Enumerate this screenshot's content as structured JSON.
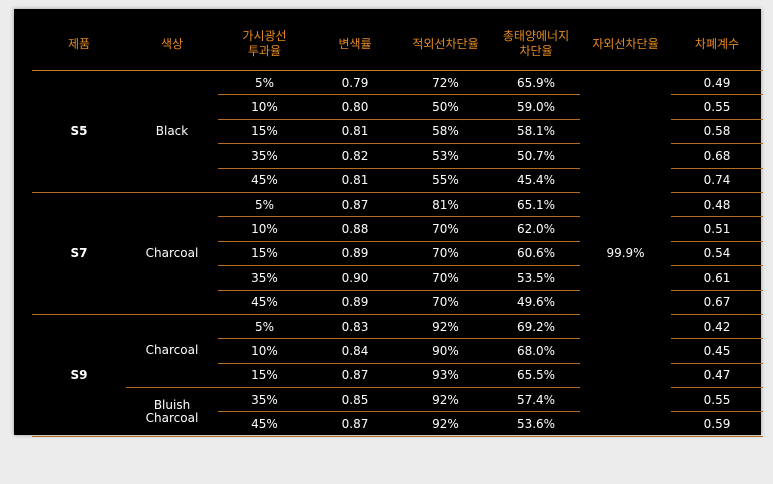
{
  "headers": {
    "product": "제품",
    "color": "색상",
    "vlt_1": "가시광선",
    "vlt_2": "투과율",
    "discolor": "변색률",
    "ir": "적외선차단율",
    "tser_1": "총태양에너지",
    "tser_2": "차단율",
    "uv": "자외선차단율",
    "shading": "차폐계수"
  },
  "uv_value": "99.9%",
  "groups": [
    {
      "product": "S5",
      "rows": [
        {
          "color": "Black",
          "vlt": "5%",
          "discolor": "0.79",
          "ir": "72%",
          "tser": "65.9%",
          "shading": "0.49"
        },
        {
          "vlt": "10%",
          "discolor": "0.80",
          "ir": "50%",
          "tser": "59.0%",
          "shading": "0.55"
        },
        {
          "vlt": "15%",
          "discolor": "0.81",
          "ir": "58%",
          "tser": "58.1%",
          "shading": "0.58"
        },
        {
          "vlt": "35%",
          "discolor": "0.82",
          "ir": "53%",
          "tser": "50.7%",
          "shading": "0.68"
        },
        {
          "vlt": "45%",
          "discolor": "0.81",
          "ir": "55%",
          "tser": "45.4%",
          "shading": "0.74"
        }
      ]
    },
    {
      "product": "S7",
      "rows": [
        {
          "color": "Charcoal",
          "vlt": "5%",
          "discolor": "0.87",
          "ir": "81%",
          "tser": "65.1%",
          "shading": "0.48"
        },
        {
          "vlt": "10%",
          "discolor": "0.88",
          "ir": "70%",
          "tser": "62.0%",
          "shading": "0.51"
        },
        {
          "vlt": "15%",
          "discolor": "0.89",
          "ir": "70%",
          "tser": "60.6%",
          "shading": "0.54"
        },
        {
          "vlt": "35%",
          "discolor": "0.90",
          "ir": "70%",
          "tser": "53.5%",
          "shading": "0.61"
        },
        {
          "vlt": "45%",
          "discolor": "0.89",
          "ir": "70%",
          "tser": "49.6%",
          "shading": "0.67"
        }
      ]
    },
    {
      "product": "S9",
      "rows": [
        {
          "color": "Charcoal",
          "vlt": "5%",
          "discolor": "0.83",
          "ir": "92%",
          "tser": "69.2%",
          "shading": "0.42"
        },
        {
          "vlt": "10%",
          "discolor": "0.84",
          "ir": "90%",
          "tser": "68.0%",
          "shading": "0.45"
        },
        {
          "vlt": "15%",
          "discolor": "0.87",
          "ir": "93%",
          "tser": "65.5%",
          "shading": "0.47"
        },
        {
          "color_1": "Bluish",
          "color_2": "Charcoal",
          "vlt": "35%",
          "discolor": "0.85",
          "ir": "92%",
          "tser": "57.4%",
          "shading": "0.55"
        },
        {
          "vlt": "45%",
          "discolor": "0.87",
          "ir": "92%",
          "tser": "53.6%",
          "shading": "0.59"
        }
      ]
    }
  ],
  "colors": {
    "header_text": "#e58a1f",
    "row_line": "#b36c20",
    "panel_bg": "#000000",
    "text": "#ffffff"
  }
}
